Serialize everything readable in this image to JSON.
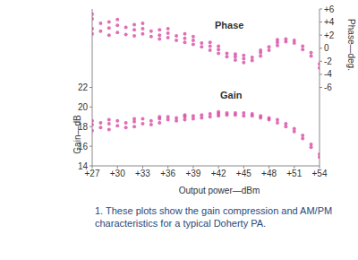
{
  "chart_data": {
    "type": "scatter",
    "caption": "1. These plots show the gain compression and AM/PM characteristics for a typical Doherty PA.",
    "x_label": "Output power—dBm",
    "y_label": "Gain—dB",
    "y2_label": "Phase—deg.",
    "xlim": [
      27,
      54
    ],
    "xticks": [
      {
        "value": 27,
        "label": "+27"
      },
      {
        "value": 30,
        "label": "+30"
      },
      {
        "value": 33,
        "label": "+33"
      },
      {
        "value": 36,
        "label": "+36"
      },
      {
        "value": 39,
        "label": "+39"
      },
      {
        "value": 42,
        "label": "+42"
      },
      {
        "value": 45,
        "label": "+45"
      },
      {
        "value": 48,
        "label": "+48"
      },
      {
        "value": 51,
        "label": "+51"
      },
      {
        "value": 54,
        "label": "+54"
      }
    ],
    "ylim": [
      14,
      30
    ],
    "yticks": [
      14,
      16,
      18,
      20,
      22
    ],
    "y2lim": [
      -18,
      6
    ],
    "y2ticks": [
      -6,
      -4,
      -2,
      0,
      {
        "value": 2,
        "label": "+2"
      },
      {
        "value": 4,
        "label": "+4"
      },
      {
        "value": 6,
        "label": "+6"
      }
    ],
    "grid": false,
    "series": [
      {
        "name": "Phase",
        "color": "#d63f9c",
        "marker": "circle",
        "axis": "y2",
        "x": [
          27,
          27,
          27,
          27,
          28,
          28,
          29,
          29,
          29,
          30,
          30,
          30,
          31,
          31,
          32,
          32,
          32,
          33,
          33,
          33,
          34,
          34,
          35,
          35,
          35,
          36,
          36,
          36,
          37,
          37,
          38,
          38,
          38,
          39,
          39,
          39,
          40,
          40,
          41,
          41,
          41,
          42,
          42,
          42,
          43,
          43,
          44,
          44,
          44,
          45,
          45,
          45,
          46,
          46,
          47,
          47,
          47,
          48,
          48,
          49,
          49,
          49,
          50,
          50,
          51,
          51,
          52,
          52,
          53,
          53,
          54,
          54
        ],
        "values": [
          4.5,
          3.0,
          2.2,
          5.2,
          3.8,
          2.6,
          4.0,
          3.1,
          2.0,
          3.5,
          4.4,
          2.4,
          3.2,
          2.1,
          3.6,
          2.8,
          1.9,
          3.0,
          2.2,
          3.8,
          2.6,
          1.8,
          2.8,
          2.0,
          1.4,
          2.3,
          1.6,
          3.0,
          1.9,
          1.2,
          1.5,
          2.2,
          0.9,
          1.2,
          0.6,
          1.8,
          0.8,
          0.2,
          0.3,
          -0.3,
          0.9,
          -0.2,
          -0.8,
          0.3,
          -0.8,
          -1.3,
          -1.3,
          -1.8,
          -0.9,
          -1.6,
          -2.2,
          -1.1,
          -1.4,
          -1.9,
          -0.7,
          -1.2,
          -0.3,
          0.2,
          -0.3,
          0.9,
          0.4,
          1.3,
          1.4,
          1.0,
          1.2,
          0.8,
          0.3,
          -0.2,
          -1.2,
          -0.7,
          -3.0,
          -2.4
        ]
      },
      {
        "name": "Gain",
        "color": "#d63f9c",
        "marker": "circle",
        "x": [
          27,
          27,
          27,
          28,
          28,
          29,
          29,
          29,
          30,
          30,
          31,
          31,
          32,
          32,
          32,
          33,
          33,
          34,
          34,
          35,
          35,
          35,
          36,
          36,
          37,
          37,
          38,
          38,
          38,
          39,
          39,
          40,
          40,
          41,
          41,
          42,
          42,
          42,
          43,
          43,
          44,
          44,
          45,
          45,
          46,
          46,
          47,
          47,
          48,
          48,
          49,
          49,
          50,
          50,
          51,
          51,
          52,
          52,
          53,
          53,
          54,
          54
        ],
        "values": [
          18.2,
          17.6,
          18.6,
          17.9,
          18.4,
          18.3,
          17.7,
          18.7,
          18.1,
          18.6,
          18.4,
          17.9,
          18.5,
          18.0,
          18.8,
          18.3,
          18.8,
          18.6,
          18.2,
          18.8,
          18.4,
          19.0,
          18.7,
          19.0,
          18.9,
          18.6,
          19.0,
          18.7,
          19.2,
          19.1,
          18.8,
          19.2,
          18.9,
          19.3,
          19.0,
          19.3,
          19.1,
          19.5,
          19.4,
          19.2,
          19.4,
          19.2,
          19.4,
          19.1,
          19.3,
          19.1,
          19.1,
          18.9,
          18.9,
          18.7,
          18.7,
          18.4,
          18.3,
          18.0,
          17.8,
          17.5,
          17.1,
          16.8,
          16.2,
          15.9,
          15.2,
          14.9
        ]
      }
    ]
  }
}
